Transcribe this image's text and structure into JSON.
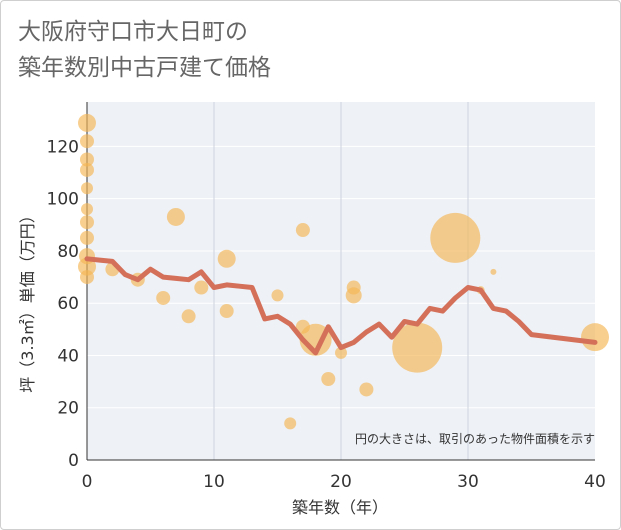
{
  "title_line1": "大阪府守口市大日町の",
  "title_line2": "築年数別中古戸建て価格",
  "chart_data": {
    "type": "scatter+line",
    "title": "大阪府守口市大日町の築年数別中古戸建て価格",
    "xlabel": "築年数（年）",
    "ylabel": "坪（3.3㎡）単価（万円）",
    "xlim": [
      0,
      40
    ],
    "ylim": [
      0,
      137
    ],
    "xticks": [
      0,
      10,
      20,
      30,
      40
    ],
    "yticks": [
      0,
      20,
      40,
      60,
      80,
      100,
      120
    ],
    "note": "円の大きさは、取引のあった物件面積を示す",
    "bubble_color": "#f5b553",
    "line_color": "#d4705a",
    "average_line": {
      "x": [
        0,
        1,
        2,
        3,
        4,
        5,
        6,
        7,
        8,
        9,
        10,
        11,
        12,
        13,
        14,
        15,
        16,
        17,
        18,
        19,
        20,
        21,
        22,
        23,
        24,
        25,
        26,
        27,
        28,
        29,
        30,
        31,
        32,
        33,
        34,
        35,
        40
      ],
      "y": [
        77,
        76.5,
        76,
        71,
        69,
        73,
        70,
        69.5,
        69,
        72,
        66,
        67,
        66.5,
        66,
        54,
        55,
        52,
        46,
        41,
        51,
        43,
        45,
        49,
        52,
        47,
        53,
        52,
        58,
        57,
        62,
        66,
        65,
        58,
        57,
        53,
        48,
        45
      ]
    },
    "bubbles": [
      {
        "x": 0,
        "y": 129,
        "size": 9
      },
      {
        "x": 0,
        "y": 122,
        "size": 7
      },
      {
        "x": 0,
        "y": 115,
        "size": 7
      },
      {
        "x": 0,
        "y": 111,
        "size": 7
      },
      {
        "x": 0,
        "y": 104,
        "size": 6
      },
      {
        "x": 0,
        "y": 96,
        "size": 6
      },
      {
        "x": 0,
        "y": 91,
        "size": 7
      },
      {
        "x": 0,
        "y": 85,
        "size": 7
      },
      {
        "x": 0,
        "y": 78,
        "size": 8
      },
      {
        "x": 0,
        "y": 74,
        "size": 9
      },
      {
        "x": 0,
        "y": 70,
        "size": 7
      },
      {
        "x": 2,
        "y": 73,
        "size": 7
      },
      {
        "x": 4,
        "y": 69,
        "size": 7
      },
      {
        "x": 6,
        "y": 62,
        "size": 7
      },
      {
        "x": 7,
        "y": 93,
        "size": 9
      },
      {
        "x": 8,
        "y": 55,
        "size": 7
      },
      {
        "x": 9,
        "y": 66,
        "size": 7
      },
      {
        "x": 11,
        "y": 77,
        "size": 9
      },
      {
        "x": 11,
        "y": 57,
        "size": 7
      },
      {
        "x": 15,
        "y": 63,
        "size": 6
      },
      {
        "x": 16,
        "y": 14,
        "size": 6
      },
      {
        "x": 17,
        "y": 88,
        "size": 7
      },
      {
        "x": 17,
        "y": 51,
        "size": 7
      },
      {
        "x": 18,
        "y": 46,
        "size": 16
      },
      {
        "x": 19,
        "y": 31,
        "size": 7
      },
      {
        "x": 20,
        "y": 41,
        "size": 6
      },
      {
        "x": 21,
        "y": 66,
        "size": 7
      },
      {
        "x": 21,
        "y": 63,
        "size": 8
      },
      {
        "x": 22,
        "y": 27,
        "size": 7
      },
      {
        "x": 26,
        "y": 43,
        "size": 25
      },
      {
        "x": 29,
        "y": 85,
        "size": 25
      },
      {
        "x": 31,
        "y": 65,
        "size": 4
      },
      {
        "x": 32,
        "y": 72,
        "size": 3
      },
      {
        "x": 40,
        "y": 47,
        "size": 14
      }
    ]
  }
}
